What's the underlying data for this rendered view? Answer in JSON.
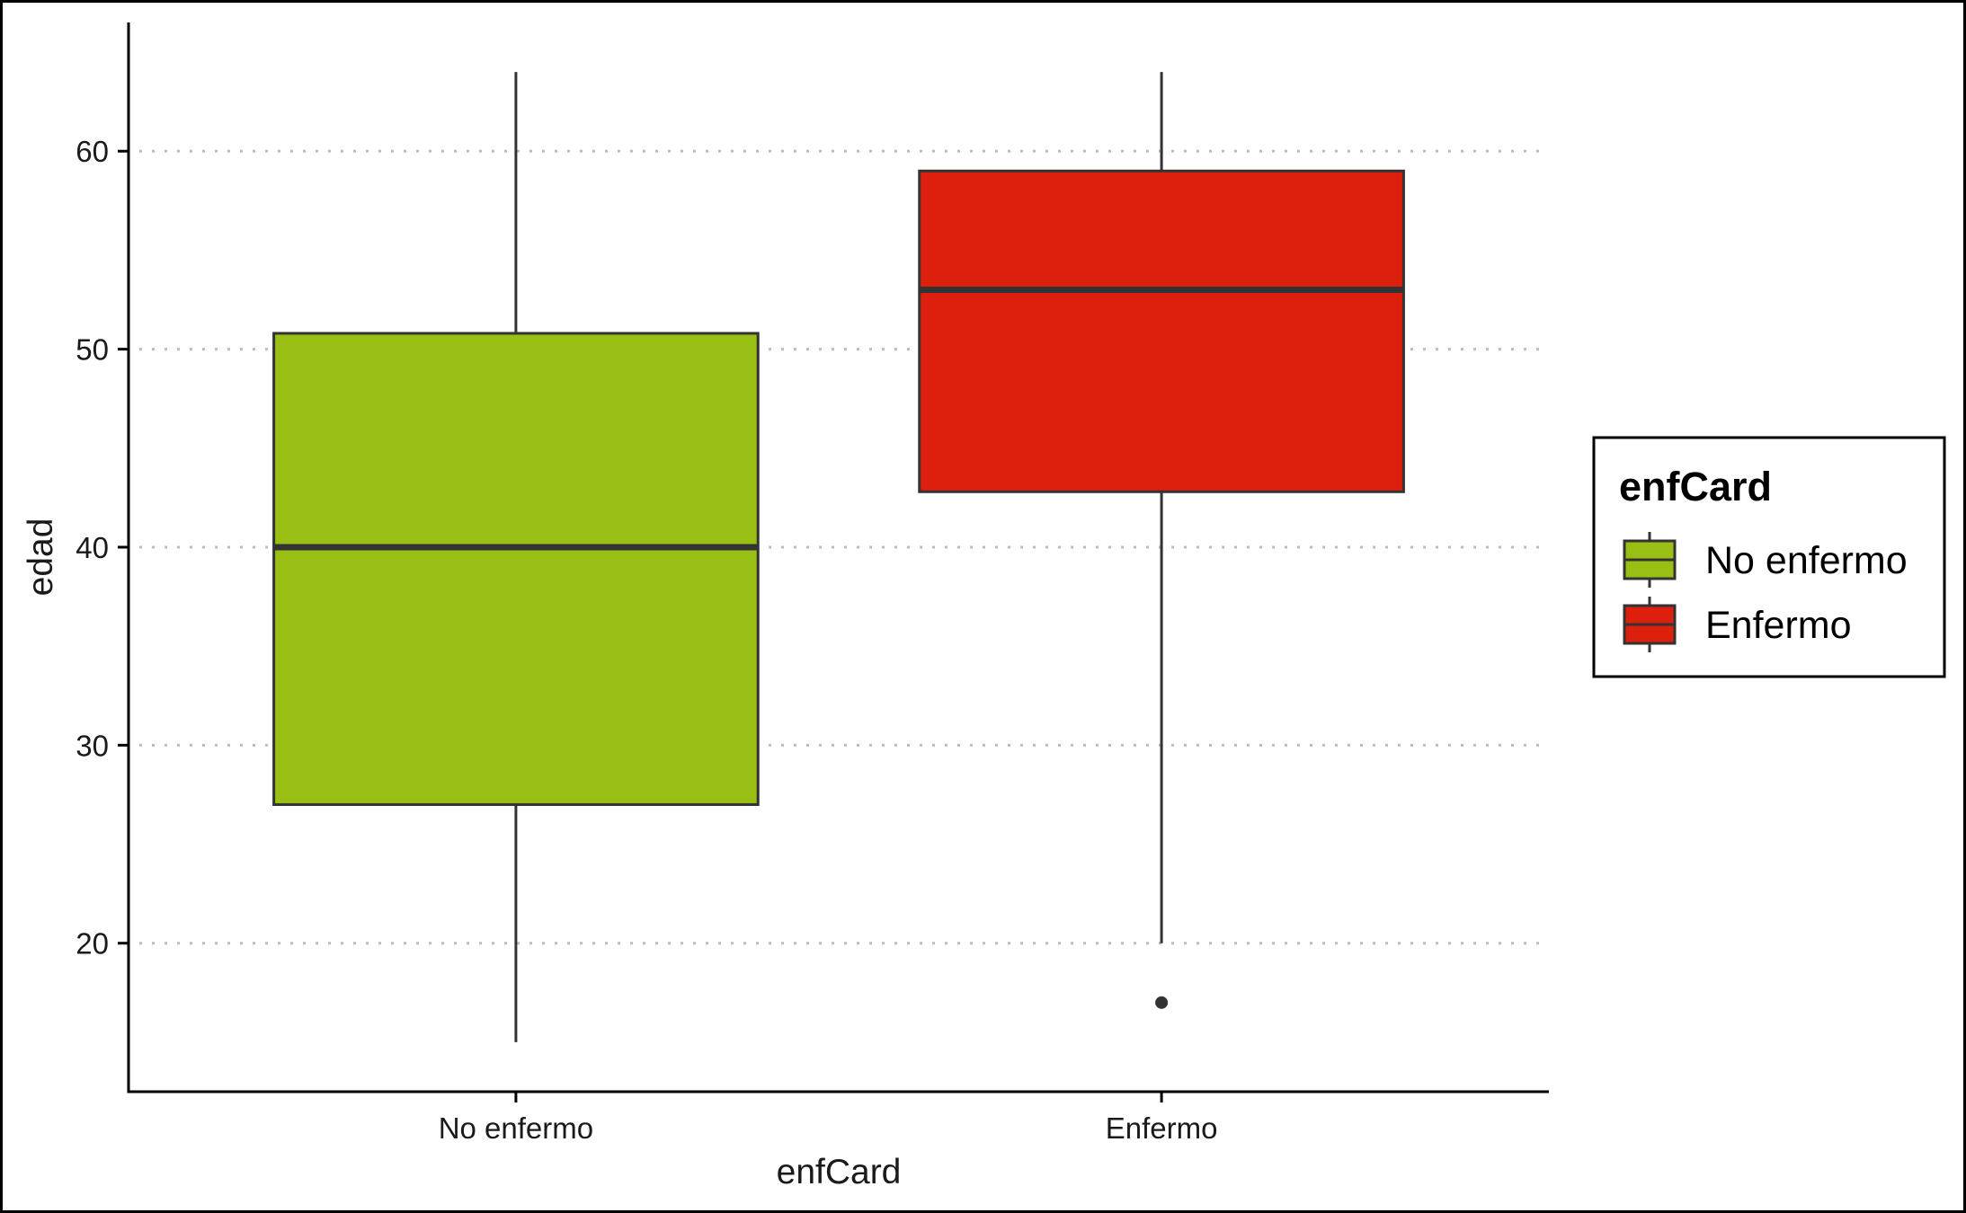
{
  "chart_data": {
    "type": "boxplot",
    "xlabel": "enfCard",
    "ylabel": "edad",
    "categories": [
      "No enfermo",
      "Enfermo"
    ],
    "ylim": [
      12.5,
      66.5
    ],
    "yticks": [
      20,
      30,
      40,
      50,
      60
    ],
    "grid": "horizontal-dotted",
    "legend": {
      "title": "enfCard",
      "placement": "right",
      "entries": [
        "No enfermo",
        "Enfermo"
      ]
    },
    "series": [
      {
        "name": "No enfermo",
        "color": "#99bf14",
        "min": 15,
        "q1": 27,
        "median": 40,
        "q3": 50.8,
        "max": 64,
        "outliers": []
      },
      {
        "name": "Enfermo",
        "color": "#dd1f0d",
        "min": 20,
        "q1": 42.8,
        "median": 53,
        "q3": 59,
        "max": 64,
        "outliers": [
          17
        ]
      }
    ]
  }
}
